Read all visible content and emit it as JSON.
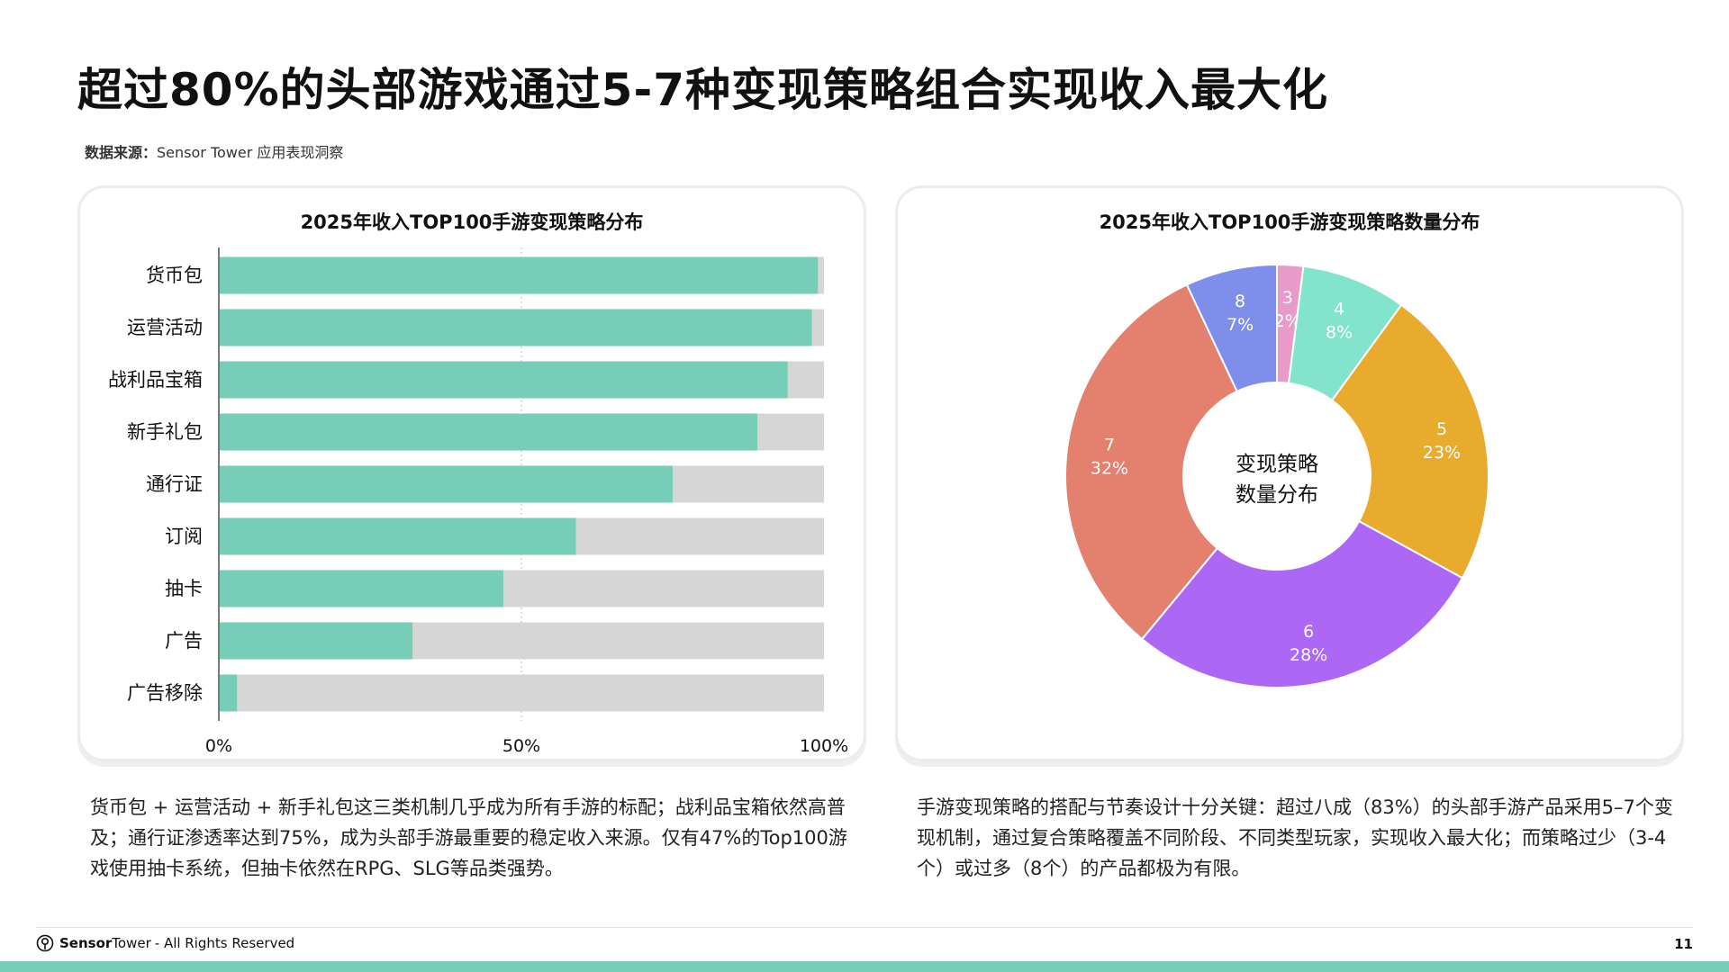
{
  "page": {
    "title": "超过80%的头部游戏通过5-7种变现策略组合实现收入最大化",
    "source_label": "数据来源：",
    "source_text": "Sensor Tower 应用表现洞察",
    "page_number": "11"
  },
  "footer": {
    "brand_bold": "Sensor",
    "brand_regular": "Tower",
    "rights": "- All Rights Reserved"
  },
  "left_desc": "货币包 + 运营活动 + 新手礼包这三类机制几乎成为所有手游的标配；战利品宝箱依然高普及；通行证渗透率达到75%，成为头部手游最重要的稳定收入来源。仅有47%的Top100游戏使用抽卡系统，但抽卡依然在RPG、SLG等品类强势。",
  "right_desc": "手游变现策略的搭配与节奏设计十分关键：超过八成（83%）的头部手游产品采用5–7个变现机制，通过复合策略覆盖不同阶段、不同类型玩家，实现收入最大化；而策略过少（3-4个）或过多（8个）的产品都极为有限。",
  "colors": {
    "bar_fill": "#76cdb8",
    "bar_track": "#d6d6d6",
    "accent": "#76cdb8"
  },
  "chart_data": [
    {
      "type": "bar",
      "orientation": "horizontal",
      "title": "2025年收入TOP100手游变现策略分布",
      "categories": [
        "货币包",
        "运营活动",
        "战利品宝箱",
        "新手礼包",
        "通行证",
        "订阅",
        "抽卡",
        "广告",
        "广告移除"
      ],
      "values": [
        99,
        98,
        94,
        89,
        75,
        59,
        47,
        32,
        3
      ],
      "unit": "%",
      "xlim": [
        0,
        100
      ],
      "xticks": [
        "0%",
        "50%",
        "100%"
      ],
      "grid": "vertical dotted at 50%"
    },
    {
      "type": "pie",
      "variant": "donut",
      "title": "2025年收入TOP100手游变现策略数量分布",
      "center_label": [
        "变现策略",
        "数量分布"
      ],
      "slices": [
        {
          "label": "3",
          "percent_label": "2%",
          "value": 2,
          "color": "#e89ac8"
        },
        {
          "label": "4",
          "percent_label": "8%",
          "value": 8,
          "color": "#83e4ce"
        },
        {
          "label": "5",
          "percent_label": "23%",
          "value": 23,
          "color": "#e8ab2e"
        },
        {
          "label": "6",
          "percent_label": "28%",
          "value": 28,
          "color": "#ad67f5"
        },
        {
          "label": "7",
          "percent_label": "32%",
          "value": 32,
          "color": "#e4806e"
        },
        {
          "label": "8",
          "percent_label": "7%",
          "value": 7,
          "color": "#7f8eea"
        }
      ]
    }
  ]
}
